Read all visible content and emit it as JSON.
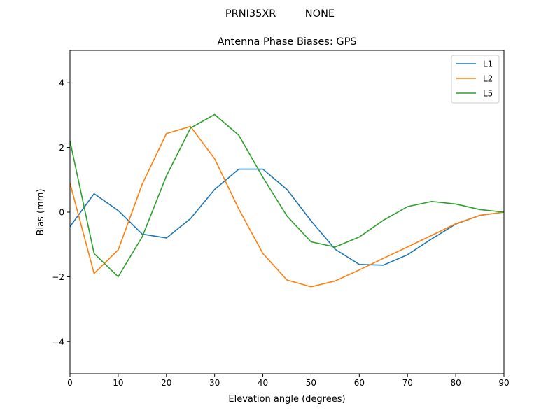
{
  "figure": {
    "suptitle": "PRNI35XR         NONE"
  },
  "chart_data": {
    "type": "line",
    "title": "Antenna Phase Biases: GPS",
    "xlabel": "Elevation angle (degrees)",
    "ylabel": "Bias (mm)",
    "xlim": [
      0,
      90
    ],
    "ylim": [
      -5,
      5
    ],
    "xticks": [
      0,
      10,
      20,
      30,
      40,
      50,
      60,
      70,
      80,
      90
    ],
    "yticks": [
      -4,
      -2,
      0,
      2,
      4
    ],
    "grid": false,
    "legend": "top-right",
    "x": [
      0,
      5,
      10,
      15,
      20,
      25,
      30,
      35,
      40,
      45,
      50,
      55,
      60,
      65,
      70,
      75,
      80,
      85,
      90
    ],
    "series": [
      {
        "name": "L1",
        "color": "#1f77b4",
        "values": [
          -0.45,
          0.57,
          0.05,
          -0.68,
          -0.8,
          -0.2,
          0.7,
          1.33,
          1.33,
          0.7,
          -0.27,
          -1.15,
          -1.62,
          -1.64,
          -1.32,
          -0.83,
          -0.37,
          -0.1,
          0.0
        ]
      },
      {
        "name": "L2",
        "color": "#ff7f0e",
        "values": [
          0.9,
          -1.9,
          -1.17,
          0.87,
          2.43,
          2.65,
          1.65,
          0.1,
          -1.28,
          -2.1,
          -2.31,
          -2.13,
          -1.79,
          -1.43,
          -1.08,
          -0.72,
          -0.36,
          -0.1,
          0.0
        ]
      },
      {
        "name": "L5",
        "color": "#2ca02c",
        "values": [
          2.2,
          -1.28,
          -2.0,
          -0.76,
          1.12,
          2.6,
          3.02,
          2.38,
          1.08,
          -0.12,
          -0.92,
          -1.08,
          -0.77,
          -0.25,
          0.17,
          0.33,
          0.25,
          0.08,
          0.0
        ]
      }
    ]
  }
}
